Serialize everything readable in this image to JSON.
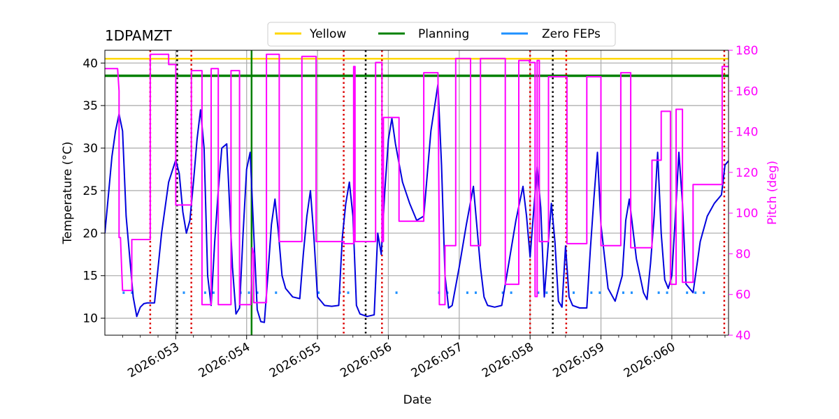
{
  "chart_data": {
    "type": "line",
    "title": "1DPAMZT",
    "xlabel": "Date",
    "ylabel": "Temperature ($^\\circ$C)",
    "ylabel_display": "Temperature (°C)",
    "y2label": "Pitch (deg)",
    "xlim": [
      52.0,
      60.8
    ],
    "ylim": [
      8.0,
      41.5
    ],
    "y2lim": [
      40,
      180
    ],
    "x_ticks": [
      53,
      54,
      55,
      56,
      57,
      58,
      59,
      60
    ],
    "x_tick_labels": [
      "2026:053",
      "2026:054",
      "2026:055",
      "2026:056",
      "2026:057",
      "2026:058",
      "2026:059",
      "2026:060"
    ],
    "y_ticks": [
      10,
      15,
      20,
      25,
      30,
      35,
      40
    ],
    "y_tick_labels": [
      "10",
      "15",
      "20",
      "25",
      "30",
      "35",
      "40"
    ],
    "y2_ticks": [
      40,
      60,
      80,
      100,
      120,
      140,
      160,
      180
    ],
    "y2_tick_labels": [
      "40",
      "60",
      "80",
      "100",
      "120",
      "140",
      "160",
      "180"
    ],
    "grid": true,
    "legend_position": "top-center",
    "legend": [
      {
        "label": "Yellow",
        "color": "#ffd700"
      },
      {
        "label": "Planning",
        "color": "#008000"
      },
      {
        "label": "Zero FEPs",
        "color": "#1e90ff"
      }
    ],
    "limits": {
      "yellow": 40.5,
      "planning": 38.5
    },
    "planning_vline_x": 54.07,
    "zero_feps_y": 13.0,
    "zero_feps_segments": [
      [
        52.25,
        52.4
      ],
      [
        53.1,
        53.2
      ],
      [
        53.4,
        53.6
      ],
      [
        53.9,
        54.2
      ],
      [
        54.4,
        54.5
      ],
      [
        55.0,
        55.1
      ],
      [
        55.3,
        55.5
      ],
      [
        56.1,
        56.2
      ],
      [
        56.7,
        56.9
      ],
      [
        57.1,
        57.3
      ],
      [
        57.6,
        57.8
      ],
      [
        58.1,
        58.3
      ],
      [
        58.6,
        58.7
      ],
      [
        58.85,
        59.0
      ],
      [
        59.3,
        59.5
      ],
      [
        59.8,
        60.0
      ],
      [
        60.2,
        60.5
      ]
    ],
    "black_dotted_x": [
      53.02,
      55.68,
      58.32
    ],
    "red_dotted_x": [
      52.64,
      53.22,
      55.37,
      55.91,
      58.0,
      58.51,
      60.74
    ],
    "series": [
      {
        "name": "1DPAMZT temperature",
        "axis": "left",
        "color": "#0000dd",
        "x": [
          52.0,
          52.05,
          52.1,
          52.15,
          52.2,
          52.25,
          52.3,
          52.4,
          52.45,
          52.5,
          52.55,
          52.6,
          52.7,
          52.8,
          52.9,
          53.0,
          53.05,
          53.1,
          53.15,
          53.2,
          53.25,
          53.3,
          53.35,
          53.4,
          53.45,
          53.5,
          53.55,
          53.6,
          53.65,
          53.72,
          53.8,
          53.85,
          53.9,
          53.95,
          54.0,
          54.05,
          54.1,
          54.15,
          54.2,
          54.25,
          54.3,
          54.35,
          54.4,
          54.45,
          54.5,
          54.55,
          54.65,
          54.75,
          54.8,
          54.85,
          54.9,
          54.95,
          55.0,
          55.1,
          55.2,
          55.3,
          55.35,
          55.4,
          55.45,
          55.5,
          55.55,
          55.6,
          55.7,
          55.8,
          55.85,
          55.9,
          55.95,
          56.0,
          56.05,
          56.1,
          56.2,
          56.3,
          56.4,
          56.5,
          56.6,
          56.7,
          56.75,
          56.8,
          56.85,
          56.9,
          57.0,
          57.1,
          57.2,
          57.3,
          57.35,
          57.4,
          57.5,
          57.6,
          57.7,
          57.8,
          57.9,
          57.95,
          58.0,
          58.05,
          58.1,
          58.15,
          58.2,
          58.25,
          58.3,
          58.35,
          58.4,
          58.45,
          58.5,
          58.55,
          58.6,
          58.7,
          58.8,
          58.85,
          58.9,
          58.95,
          59.0,
          59.1,
          59.2,
          59.3,
          59.35,
          59.4,
          59.5,
          59.6,
          59.65,
          59.7,
          59.75,
          59.8,
          59.85,
          59.9,
          59.95,
          60.0,
          60.05,
          60.1,
          60.15,
          60.2,
          60.25,
          60.3,
          60.35,
          60.4,
          60.5,
          60.6,
          60.7,
          60.75,
          60.8
        ],
        "values": [
          20.0,
          24.5,
          29.0,
          32.0,
          34.0,
          32.0,
          22.0,
          12.5,
          10.2,
          11.3,
          11.7,
          11.8,
          11.8,
          20.0,
          26.0,
          28.6,
          27.0,
          22.5,
          20.0,
          21.5,
          26.0,
          31.0,
          34.5,
          30.0,
          15.0,
          11.5,
          19.0,
          25.0,
          30.0,
          30.5,
          16.0,
          10.5,
          11.2,
          20.0,
          27.5,
          29.5,
          20.0,
          11.0,
          9.6,
          9.5,
          15.0,
          21.0,
          24.0,
          20.0,
          15.0,
          13.5,
          12.5,
          12.3,
          17.5,
          22.0,
          25.0,
          19.5,
          12.5,
          11.5,
          11.4,
          11.5,
          19.5,
          23.5,
          26.0,
          22.0,
          11.5,
          10.5,
          10.2,
          10.4,
          20.0,
          17.5,
          25.0,
          31.0,
          33.5,
          30.5,
          26.0,
          23.5,
          21.5,
          22.0,
          32.0,
          37.5,
          28.0,
          15.0,
          11.2,
          11.5,
          16.0,
          21.0,
          25.5,
          16.0,
          12.5,
          11.5,
          11.3,
          11.5,
          16.5,
          21.5,
          25.5,
          22.0,
          17.2,
          22.5,
          27.8,
          23.0,
          12.5,
          18.0,
          23.5,
          19.0,
          12.0,
          11.3,
          18.5,
          12.5,
          11.5,
          11.2,
          11.2,
          18.0,
          24.0,
          29.5,
          21.0,
          13.5,
          12.0,
          15.0,
          21.5,
          24.0,
          17.0,
          13.0,
          12.2,
          16.5,
          22.0,
          29.5,
          20.0,
          14.5,
          13.5,
          15.0,
          22.0,
          29.5,
          23.5,
          14.0,
          13.5,
          13.0,
          16.0,
          19.0,
          22.0,
          23.5,
          24.5,
          28.0,
          28.5
        ]
      },
      {
        "name": "Pitch",
        "axis": "right",
        "color": "#ff00ff",
        "x": [
          52.0,
          52.18,
          52.2,
          52.2,
          52.22,
          52.24,
          52.25,
          52.38,
          52.38,
          52.64,
          52.64,
          52.9,
          52.9,
          53.0,
          53.0,
          53.22,
          53.22,
          53.37,
          53.37,
          53.5,
          53.5,
          53.6,
          53.6,
          53.78,
          53.78,
          53.9,
          53.9,
          54.06,
          54.08,
          54.1,
          54.1,
          54.28,
          54.28,
          54.46,
          54.46,
          54.78,
          54.78,
          54.98,
          54.98,
          55.37,
          55.37,
          55.51,
          55.51,
          55.53,
          55.53,
          55.77,
          55.77,
          55.82,
          55.82,
          55.91,
          55.91,
          55.93,
          55.93,
          56.15,
          56.15,
          56.5,
          56.5,
          56.7,
          56.72,
          56.72,
          56.8,
          56.8,
          56.95,
          56.95,
          57.16,
          57.16,
          57.3,
          57.3,
          57.65,
          57.65,
          57.84,
          57.84,
          57.99,
          57.99,
          58.07,
          58.07,
          58.1,
          58.1,
          58.13,
          58.13,
          58.26,
          58.26,
          58.52,
          58.52,
          58.8,
          58.8,
          59.0,
          59.0,
          59.28,
          59.28,
          59.42,
          59.42,
          59.68,
          59.68,
          59.72,
          59.72,
          59.85,
          59.85,
          59.98,
          59.98,
          60.06,
          60.06,
          60.15,
          60.15,
          60.3,
          60.3,
          60.34,
          60.34,
          60.71,
          60.71,
          60.8
        ],
        "values": [
          171,
          171,
          160,
          88,
          88,
          70,
          62,
          62,
          87,
          87,
          178,
          178,
          173,
          173,
          104,
          104,
          170,
          170,
          55,
          55,
          171,
          171,
          55,
          55,
          170,
          170,
          55,
          55,
          83,
          80,
          56,
          56,
          178,
          178,
          86,
          86,
          177,
          177,
          86,
          86,
          85,
          85,
          172,
          172,
          86,
          86,
          86,
          86,
          174,
          174,
          86,
          86,
          147,
          147,
          96,
          96,
          169,
          169,
          82,
          55,
          55,
          84,
          84,
          176,
          176,
          84,
          84,
          176,
          176,
          65,
          65,
          175,
          175,
          174,
          174,
          59,
          59,
          175,
          175,
          86,
          86,
          167,
          167,
          85,
          85,
          167,
          167,
          84,
          84,
          169,
          169,
          83,
          83,
          83,
          83,
          126,
          126,
          150,
          150,
          65,
          65,
          151,
          151,
          66,
          66,
          114,
          114,
          114,
          114,
          172,
          172
        ]
      }
    ]
  }
}
